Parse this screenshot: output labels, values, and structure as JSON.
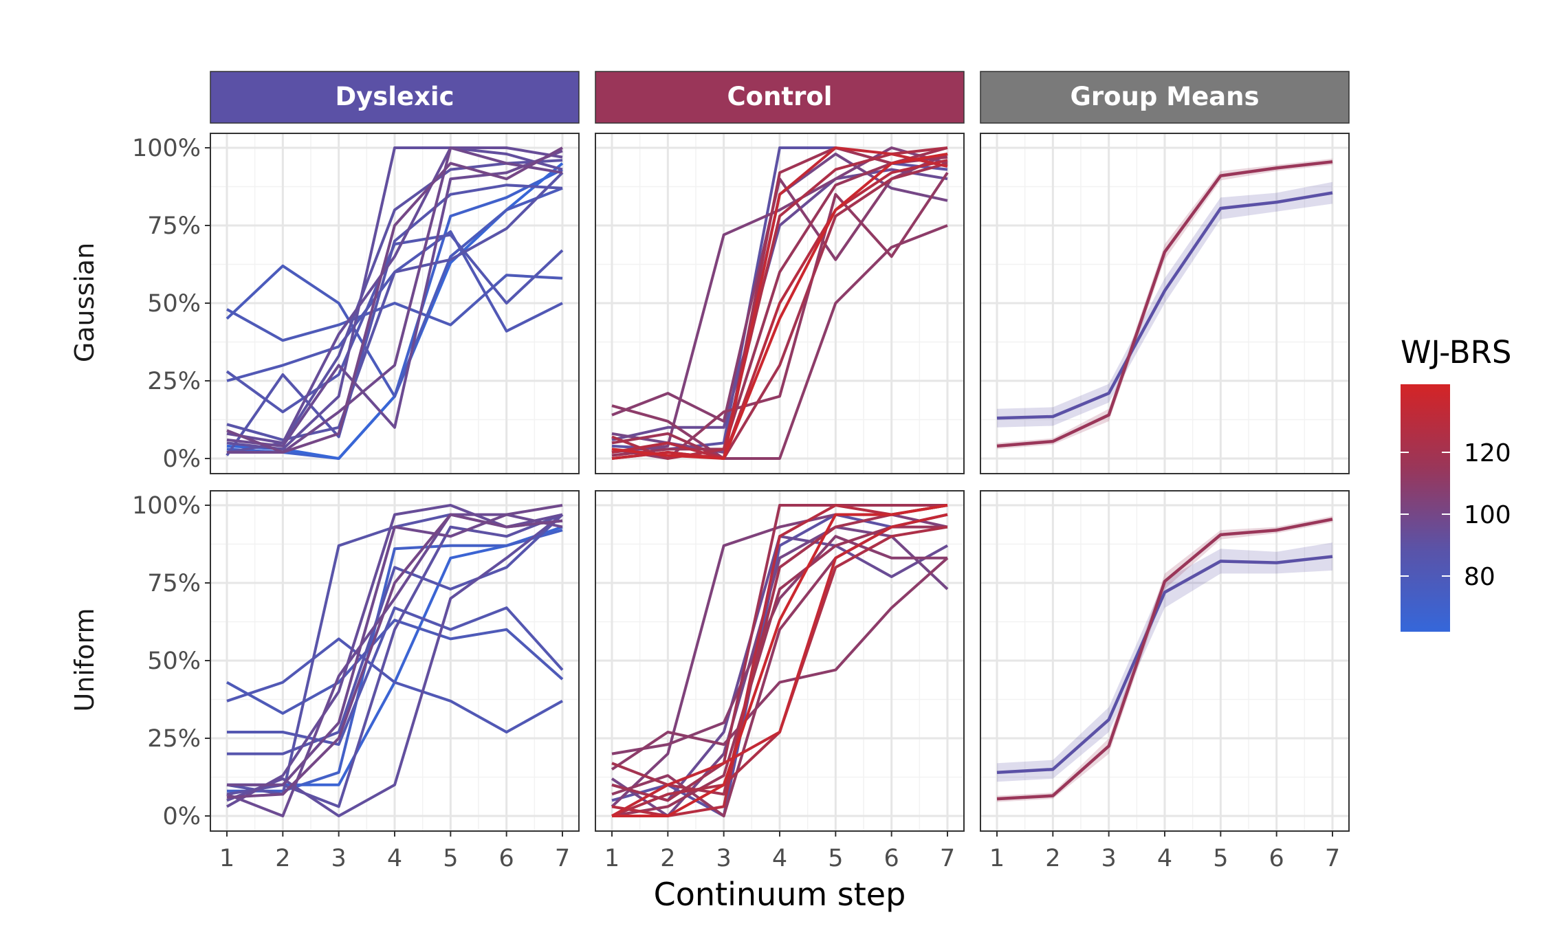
{
  "chart_data": {
    "type": "line",
    "facet_columns": [
      "Dyslexic",
      "Control",
      "Group Means"
    ],
    "facet_column_colors": [
      "#5B51A6",
      "#9A3659",
      "#7A7A7A"
    ],
    "facet_rows": [
      "Gaussian",
      "Uniform"
    ],
    "xlabel": "Continuum step",
    "ylabel": "",
    "x_ticks": [
      "1",
      "2",
      "3",
      "4",
      "5",
      "6",
      "7"
    ],
    "y_ticks": [
      "0%",
      "25%",
      "50%",
      "75%",
      "100%"
    ],
    "xlim": [
      1,
      7
    ],
    "ylim": [
      0,
      1
    ],
    "grid": true,
    "legend": {
      "title": "WJ-BRS",
      "placement": "right",
      "type": "colorbar",
      "ticks": [
        "80",
        "100",
        "120"
      ],
      "range": [
        62,
        142
      ],
      "colors": [
        "#3567DA",
        "#5A53A8",
        "#9A3659",
        "#D42426"
      ]
    },
    "means_colors": {
      "Dyslexic": "#5B51A6",
      "Control": "#9A3659"
    },
    "panels": [
      {
        "row": "Gaussian",
        "column": "Dyslexic",
        "series": [
          {
            "wj": 70,
            "values": [
              0.03,
              0.02,
              0.0,
              0.2,
              0.78,
              0.84,
              0.93
            ]
          },
          {
            "wj": 64,
            "values": [
              0.04,
              0.03,
              0.0,
              0.2,
              0.63,
              0.8,
              0.95
            ]
          },
          {
            "wj": 78,
            "values": [
              0.45,
              0.62,
              0.5,
              0.2,
              0.65,
              0.8,
              0.87
            ]
          },
          {
            "wj": 80,
            "values": [
              0.48,
              0.38,
              0.43,
              0.5,
              0.43,
              0.59,
              0.58
            ]
          },
          {
            "wj": 82,
            "values": [
              0.25,
              0.3,
              0.36,
              0.6,
              0.73,
              0.41,
              0.5
            ]
          },
          {
            "wj": 84,
            "values": [
              0.28,
              0.15,
              0.27,
              0.69,
              0.72,
              0.5,
              0.67
            ]
          },
          {
            "wj": 86,
            "values": [
              0.01,
              0.27,
              0.07,
              0.7,
              0.85,
              0.88,
              0.87
            ]
          },
          {
            "wj": 88,
            "values": [
              0.11,
              0.06,
              0.1,
              0.6,
              0.64,
              0.74,
              0.92
            ]
          },
          {
            "wj": 90,
            "values": [
              0.02,
              0.05,
              0.33,
              0.8,
              0.93,
              0.95,
              0.96
            ]
          },
          {
            "wj": 92,
            "values": [
              0.05,
              0.03,
              0.2,
              1.0,
              1.0,
              0.98,
              0.93
            ]
          },
          {
            "wj": 94,
            "values": [
              0.08,
              0.05,
              0.4,
              0.65,
              1.0,
              1.0,
              0.97
            ]
          },
          {
            "wj": 96,
            "values": [
              0.06,
              0.04,
              0.3,
              0.1,
              0.9,
              0.92,
              0.99
            ]
          },
          {
            "wj": 98,
            "values": [
              0.02,
              0.02,
              0.15,
              0.3,
              1.0,
              0.95,
              0.92
            ]
          },
          {
            "wj": 100,
            "values": [
              0.09,
              0.02,
              0.08,
              0.75,
              0.95,
              0.9,
              1.0
            ]
          }
        ]
      },
      {
        "row": "Gaussian",
        "column": "Control",
        "series": [
          {
            "wj": 90,
            "values": [
              0.04,
              0.03,
              0.05,
              1.0,
              1.0,
              0.95,
              0.93
            ]
          },
          {
            "wj": 95,
            "values": [
              0.06,
              0.1,
              0.1,
              0.75,
              0.9,
              0.93,
              0.9
            ]
          },
          {
            "wj": 100,
            "values": [
              0.08,
              0.05,
              0.02,
              0.85,
              0.98,
              0.87,
              0.83
            ]
          },
          {
            "wj": 104,
            "values": [
              0.02,
              0.04,
              0.72,
              0.8,
              0.9,
              1.0,
              0.95
            ]
          },
          {
            "wj": 108,
            "values": [
              0.14,
              0.21,
              0.12,
              0.9,
              0.64,
              0.9,
              0.98
            ]
          },
          {
            "wj": 110,
            "values": [
              0.17,
              0.12,
              0.0,
              0.0,
              0.5,
              0.68,
              0.75
            ]
          },
          {
            "wj": 112,
            "values": [
              0.03,
              0.0,
              0.15,
              0.2,
              0.85,
              0.65,
              0.92
            ]
          },
          {
            "wj": 115,
            "values": [
              0.01,
              0.03,
              0.03,
              0.6,
              0.88,
              0.95,
              0.97
            ]
          },
          {
            "wj": 118,
            "values": [
              0.05,
              0.08,
              0.0,
              0.92,
              1.0,
              0.95,
              1.0
            ]
          },
          {
            "wj": 120,
            "values": [
              0.0,
              0.02,
              0.0,
              0.3,
              0.78,
              0.9,
              0.95
            ]
          },
          {
            "wj": 124,
            "values": [
              0.07,
              0.0,
              0.03,
              0.78,
              0.93,
              0.98,
              1.0
            ]
          },
          {
            "wj": 128,
            "values": [
              0.02,
              0.05,
              0.0,
              0.5,
              0.8,
              0.92,
              0.96
            ]
          },
          {
            "wj": 134,
            "values": [
              0.0,
              0.02,
              0.0,
              0.85,
              1.0,
              0.98,
              0.94
            ]
          },
          {
            "wj": 138,
            "values": [
              0.03,
              0.01,
              0.0,
              0.45,
              0.8,
              0.95,
              0.98
            ]
          }
        ]
      },
      {
        "row": "Gaussian",
        "column": "Group Means",
        "series": [
          {
            "group": "Dyslexic",
            "values": [
              0.13,
              0.135,
              0.21,
              0.54,
              0.805,
              0.825,
              0.855
            ],
            "lower": [
              0.1,
              0.105,
              0.18,
              0.5,
              0.77,
              0.795,
              0.82
            ],
            "upper": [
              0.16,
              0.165,
              0.24,
              0.58,
              0.84,
              0.855,
              0.89
            ]
          },
          {
            "group": "Control",
            "values": [
              0.04,
              0.055,
              0.14,
              0.665,
              0.91,
              0.935,
              0.955
            ],
            "lower": [
              0.03,
              0.045,
              0.12,
              0.64,
              0.895,
              0.925,
              0.945
            ],
            "upper": [
              0.05,
              0.065,
              0.16,
              0.69,
              0.925,
              0.945,
              0.965
            ]
          }
        ]
      },
      {
        "row": "Uniform",
        "column": "Dyslexic",
        "series": [
          {
            "wj": 66,
            "values": [
              0.1,
              0.1,
              0.1,
              0.43,
              0.83,
              0.87,
              0.93
            ]
          },
          {
            "wj": 72,
            "values": [
              0.08,
              0.08,
              0.14,
              0.86,
              0.87,
              0.87,
              0.92
            ]
          },
          {
            "wj": 80,
            "values": [
              0.43,
              0.33,
              0.43,
              0.63,
              0.57,
              0.6,
              0.44
            ]
          },
          {
            "wj": 82,
            "values": [
              0.37,
              0.43,
              0.57,
              0.43,
              0.37,
              0.27,
              0.37
            ]
          },
          {
            "wj": 84,
            "values": [
              0.27,
              0.27,
              0.23,
              0.67,
              0.6,
              0.67,
              0.47
            ]
          },
          {
            "wj": 86,
            "values": [
              0.2,
              0.2,
              0.27,
              0.8,
              0.73,
              0.8,
              0.97
            ]
          },
          {
            "wj": 88,
            "values": [
              0.1,
              0.07,
              0.87,
              0.93,
              0.97,
              0.93,
              0.95
            ]
          },
          {
            "wj": 90,
            "values": [
              0.07,
              0.1,
              0.03,
              0.6,
              0.93,
              0.9,
              0.97
            ]
          },
          {
            "wj": 92,
            "values": [
              0.05,
              0.12,
              0.0,
              0.1,
              0.7,
              0.83,
              0.97
            ]
          },
          {
            "wj": 94,
            "values": [
              0.03,
              0.13,
              0.4,
              0.97,
              1.0,
              0.93,
              0.97
            ]
          },
          {
            "wj": 96,
            "values": [
              0.07,
              0.0,
              0.45,
              0.7,
              0.97,
              0.97,
              0.93
            ]
          },
          {
            "wj": 98,
            "values": [
              0.1,
              0.1,
              0.3,
              0.93,
              0.9,
              0.97,
              1.0
            ]
          },
          {
            "wj": 100,
            "values": [
              0.06,
              0.07,
              0.25,
              0.75,
              0.97,
              0.93,
              0.95
            ]
          }
        ]
      },
      {
        "row": "Uniform",
        "column": "Control",
        "series": [
          {
            "wj": 90,
            "values": [
              0.05,
              0.1,
              0.0,
              0.87,
              0.97,
              0.93,
              0.97
            ]
          },
          {
            "wj": 95,
            "values": [
              0.1,
              0.05,
              0.27,
              0.9,
              0.87,
              0.77,
              0.87
            ]
          },
          {
            "wj": 100,
            "values": [
              0.12,
              0.0,
              0.2,
              0.83,
              0.93,
              0.9,
              0.73
            ]
          },
          {
            "wj": 104,
            "values": [
              0.03,
              0.2,
              0.87,
              0.93,
              0.97,
              0.97,
              0.93
            ]
          },
          {
            "wj": 108,
            "values": [
              0.2,
              0.23,
              0.3,
              0.7,
              0.9,
              0.83,
              0.83
            ]
          },
          {
            "wj": 110,
            "values": [
              0.15,
              0.27,
              0.23,
              0.43,
              0.47,
              0.67,
              0.83
            ]
          },
          {
            "wj": 112,
            "values": [
              0.07,
              0.13,
              0.0,
              0.6,
              0.83,
              0.93,
              0.97
            ]
          },
          {
            "wj": 115,
            "values": [
              0.0,
              0.03,
              0.13,
              0.73,
              0.87,
              0.93,
              0.93
            ]
          },
          {
            "wj": 118,
            "values": [
              0.1,
              0.05,
              0.17,
              1.0,
              1.0,
              1.0,
              1.0
            ]
          },
          {
            "wj": 120,
            "values": [
              0.17,
              0.1,
              0.07,
              0.8,
              0.93,
              0.97,
              1.0
            ]
          },
          {
            "wj": 124,
            "values": [
              0.0,
              0.07,
              0.1,
              0.27,
              0.8,
              0.9,
              0.93
            ]
          },
          {
            "wj": 128,
            "values": [
              0.03,
              0.0,
              0.03,
              0.9,
              1.0,
              0.97,
              1.0
            ]
          },
          {
            "wj": 134,
            "values": [
              0.0,
              0.1,
              0.17,
              0.27,
              0.83,
              0.93,
              0.97
            ]
          },
          {
            "wj": 138,
            "values": [
              0.0,
              0.0,
              0.1,
              0.63,
              0.97,
              0.97,
              1.0
            ]
          }
        ]
      },
      {
        "row": "Uniform",
        "column": "Group Means",
        "series": [
          {
            "group": "Dyslexic",
            "values": [
              0.14,
              0.15,
              0.31,
              0.72,
              0.82,
              0.815,
              0.835
            ],
            "lower": [
              0.11,
              0.12,
              0.27,
              0.67,
              0.78,
              0.78,
              0.79
            ],
            "upper": [
              0.17,
              0.18,
              0.35,
              0.76,
              0.86,
              0.85,
              0.88
            ]
          },
          {
            "group": "Control",
            "values": [
              0.055,
              0.065,
              0.225,
              0.755,
              0.905,
              0.92,
              0.955
            ],
            "lower": [
              0.045,
              0.055,
              0.2,
              0.73,
              0.89,
              0.91,
              0.945
            ],
            "upper": [
              0.065,
              0.075,
              0.25,
              0.78,
              0.92,
              0.93,
              0.965
            ]
          }
        ]
      }
    ]
  }
}
